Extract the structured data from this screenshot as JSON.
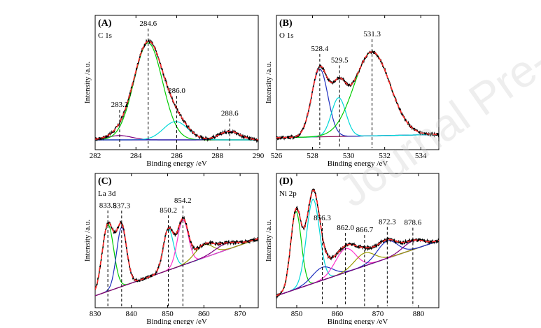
{
  "watermark": "Journal Pre-proof",
  "chart_data": [
    {
      "type": "line",
      "title": "(A)",
      "subtitle": "C 1s",
      "xlabel": "Binding energy /eV",
      "ylabel": "Intensity /a.u.",
      "xlim": [
        282,
        290
      ],
      "ylim": [
        0,
        1
      ],
      "xticks": [
        282,
        284,
        286,
        288,
        290
      ],
      "grid": false,
      "peaks": [
        {
          "x": 283.2,
          "label": "283.2"
        },
        {
          "x": 284.6,
          "label": "284.6"
        },
        {
          "x": 286.0,
          "label": "286.0"
        },
        {
          "x": 288.6,
          "label": "288.6"
        }
      ],
      "baseline": [
        [
          282,
          0.0
        ],
        [
          290,
          0.0
        ]
      ],
      "components": [
        {
          "color": "#800080",
          "center": 283.2,
          "amp": 0.04,
          "width": 0.6
        },
        {
          "color": "#00cc00",
          "center": 284.6,
          "amp": 0.9,
          "width": 0.7
        },
        {
          "color": "#00d8d8",
          "center": 285.95,
          "amp": 0.17,
          "width": 0.6
        },
        {
          "color": "#1f2fbf",
          "center": 288.6,
          "amp": 0.08,
          "width": 0.5
        }
      ],
      "series": [
        {
          "kind": "experimental",
          "color": "#000000"
        },
        {
          "kind": "fit",
          "color": "#ff2a2a",
          "dashed": true
        }
      ]
    },
    {
      "type": "line",
      "title": "(B)",
      "subtitle": "O 1s",
      "xlabel": "Binding energy /eV",
      "ylabel": "Intensity /a.u.",
      "xlim": [
        526,
        535
      ],
      "ylim": [
        0,
        1
      ],
      "xticks": [
        526,
        528,
        530,
        532,
        534
      ],
      "grid": false,
      "peaks": [
        {
          "x": 528.4,
          "label": "528.4"
        },
        {
          "x": 529.5,
          "label": "529.5"
        },
        {
          "x": 531.3,
          "label": "531.3"
        }
      ],
      "baseline": [
        [
          526,
          0.02
        ],
        [
          535,
          0.05
        ]
      ],
      "components": [
        {
          "color": "#1f2fbf",
          "center": 528.4,
          "amp": 0.63,
          "width": 0.45
        },
        {
          "color": "#00d8d8",
          "center": 529.45,
          "amp": 0.36,
          "width": 0.4
        },
        {
          "color": "#00cc00",
          "center": 531.3,
          "amp": 0.78,
          "width": 1.0
        }
      ],
      "series": [
        {
          "kind": "experimental",
          "color": "#000000"
        },
        {
          "kind": "fit",
          "color": "#ff2a2a",
          "dashed": true
        }
      ]
    },
    {
      "type": "line",
      "title": "(C)",
      "subtitle": "La 3d",
      "xlabel": "Binding energy /eV",
      "ylabel": "Intensity /a.u.",
      "xlim": [
        830,
        875
      ],
      "ylim": [
        0,
        1
      ],
      "xticks": [
        830,
        840,
        850,
        860,
        870
      ],
      "grid": false,
      "peaks": [
        {
          "x": 833.5,
          "label": "833.5"
        },
        {
          "x": 837.3,
          "label": "837.3"
        },
        {
          "x": 850.2,
          "label": "850.2"
        },
        {
          "x": 854.2,
          "label": "854.2"
        }
      ],
      "baseline": [
        [
          830,
          0.02
        ],
        [
          875,
          0.55
        ]
      ],
      "components": [
        {
          "color": "#00cc00",
          "center": 833.5,
          "amp": 0.62,
          "width": 1.6
        },
        {
          "color": "#1f2fbf",
          "center": 837.3,
          "amp": 0.55,
          "width": 1.4
        },
        {
          "color": "#00d8d8",
          "center": 850.2,
          "amp": 0.38,
          "width": 1.4
        },
        {
          "color": "#ff33cc",
          "center": 854.2,
          "amp": 0.42,
          "width": 1.5
        },
        {
          "color": "#999900",
          "center": 860.0,
          "amp": 0.12,
          "width": 2.5
        },
        {
          "color": "#800080",
          "center": 866.0,
          "amp": 0.06,
          "width": 3.0
        }
      ],
      "series": [
        {
          "kind": "experimental",
          "color": "#000000"
        },
        {
          "kind": "fit",
          "color": "#ff2a2a",
          "dashed": true
        }
      ]
    },
    {
      "type": "line",
      "title": "(D)",
      "subtitle": "Ni 2p",
      "xlabel": "Binding energy /eV",
      "ylabel": "Intensity /a.u.",
      "xlim": [
        845,
        885
      ],
      "ylim": [
        0,
        1
      ],
      "xticks": [
        850,
        860,
        870,
        880
      ],
      "grid": false,
      "peaks": [
        {
          "x": 856.3,
          "label": "856.3"
        },
        {
          "x": 862.0,
          "label": "862.0"
        },
        {
          "x": 866.7,
          "label": "866.7"
        },
        {
          "x": 872.3,
          "label": "872.3"
        },
        {
          "x": 878.6,
          "label": "878.6"
        }
      ],
      "baseline": [
        [
          845,
          0.02
        ],
        [
          885,
          0.53
        ]
      ],
      "components": [
        {
          "color": "#00cc00",
          "center": 849.8,
          "amp": 0.72,
          "width": 1.3
        },
        {
          "color": "#00d8d8",
          "center": 854.0,
          "amp": 0.78,
          "width": 1.6
        },
        {
          "color": "#1f2fbf",
          "center": 856.3,
          "amp": 0.12,
          "width": 2.5
        },
        {
          "color": "#ff33cc",
          "center": 862.0,
          "amp": 0.22,
          "width": 2.5
        },
        {
          "color": "#999900",
          "center": 866.7,
          "amp": 0.12,
          "width": 2.5
        },
        {
          "color": "#1f2fbf",
          "center": 872.3,
          "amp": 0.16,
          "width": 2.5
        },
        {
          "color": "#800080",
          "center": 878.6,
          "amp": 0.08,
          "width": 2.5
        }
      ],
      "series": [
        {
          "kind": "experimental",
          "color": "#000000"
        },
        {
          "kind": "fit",
          "color": "#ff2a2a",
          "dashed": true
        }
      ]
    }
  ]
}
